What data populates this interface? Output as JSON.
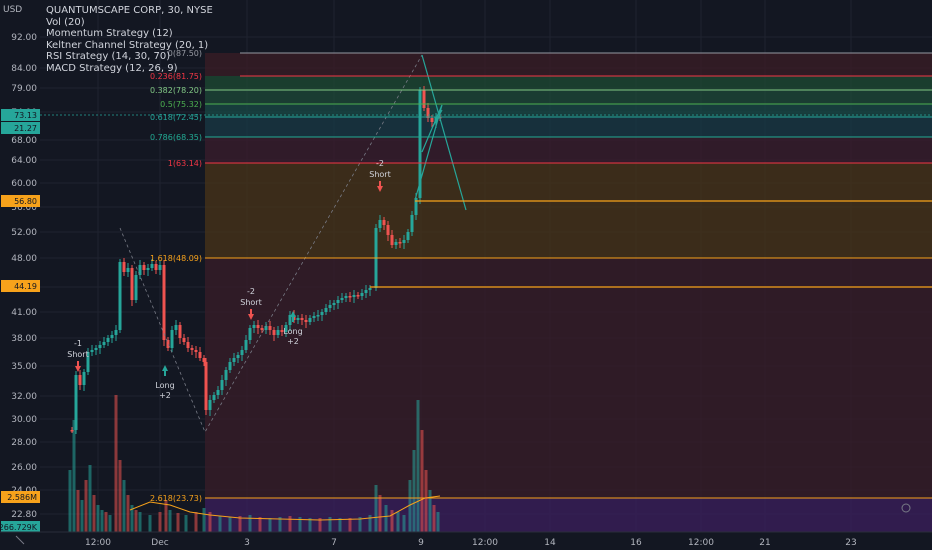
{
  "header": {
    "symbol_line": "QUANTUMSCAPE CORP, 30, NYSE",
    "currency_label": "USD",
    "indicators": [
      "Vol (20)",
      "Momentum Strategy (12)",
      "Keltner Channel Strategy (20, 1)",
      "RSI Strategy (14, 30, 70)",
      "MACD Strategy (12, 26, 9)"
    ]
  },
  "price_axis": {
    "ticks": [
      "92.00",
      "84.00",
      "79.00",
      "74.00",
      "68.00",
      "64.00",
      "60.00",
      "56.00",
      "52.00",
      "48.00",
      "44.00",
      "41.00",
      "38.00",
      "35.00",
      "32.00",
      "30.00",
      "28.00",
      "26.00",
      "24.00",
      "22.80"
    ],
    "tags": [
      {
        "text": "73.13",
        "color": "#26a69a"
      },
      {
        "text": "21.27",
        "color": "#26a69a"
      },
      {
        "text": "56.80",
        "color": "#f7a21b"
      },
      {
        "text": "44.19",
        "color": "#f7a21b"
      },
      {
        "text": "2.586M",
        "color": "#f7a21b"
      },
      {
        "text": "266.729K",
        "color": "#26a69a"
      }
    ]
  },
  "time_axis": {
    "ticks": [
      "12:00",
      "Dec",
      "3",
      "7",
      "9",
      "12:00",
      "14",
      "16",
      "12:00",
      "21",
      "23"
    ]
  },
  "fib_levels": [
    {
      "label": "0(87.50)",
      "color": "#9598a1"
    },
    {
      "label": "0.236(81.75)",
      "color": "#f23645"
    },
    {
      "label": "0.382(78.20)",
      "color": "#81c784"
    },
    {
      "label": "0.5(75.32)",
      "color": "#4caf50"
    },
    {
      "label": "0.618(72.45)",
      "color": "#26a69a"
    },
    {
      "label": "0.786(68.35)",
      "color": "#22ab94"
    },
    {
      "label": "1(63.14)",
      "color": "#f23645"
    },
    {
      "label": "1.618(48.09)",
      "color": "#f7a21b"
    },
    {
      "label": "2.618(23.73)",
      "color": "#f7a21b"
    }
  ],
  "signals": [
    {
      "type": "short",
      "count": "-1",
      "label": "Short"
    },
    {
      "type": "long",
      "count": "+2",
      "label": "Long"
    },
    {
      "type": "short",
      "count": "-2",
      "label": "Short"
    },
    {
      "type": "long",
      "count": "+2",
      "label": "Long"
    },
    {
      "type": "short",
      "count": "-2",
      "label": "Short"
    }
  ],
  "colors": {
    "background": "#131722",
    "up": "#26a69a",
    "down": "#ef5350",
    "orange": "#f7a21b",
    "grid": "#1f2330"
  }
}
